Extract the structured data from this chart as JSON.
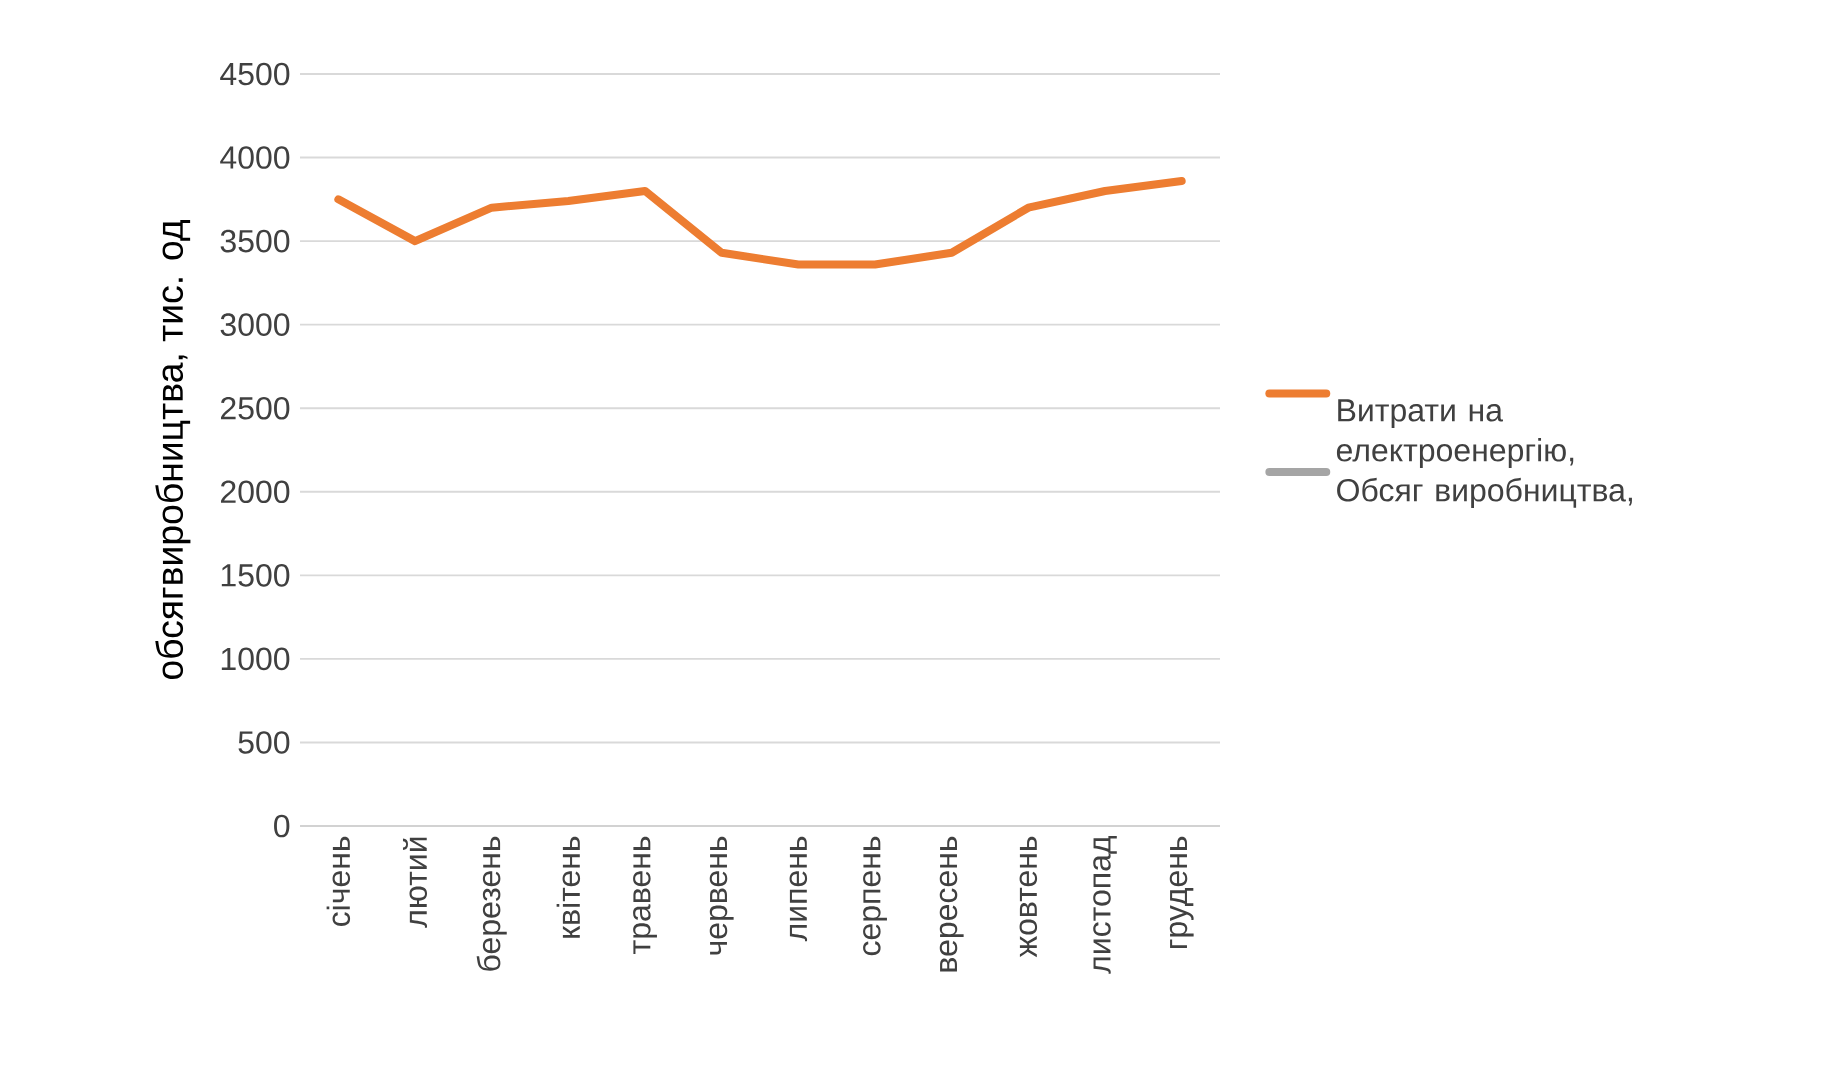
{
  "chart_data": {
    "type": "line",
    "ylabel": "обсягвиробництва, тис. од",
    "categories": [
      "січень",
      "лютий",
      "березень",
      "квітень",
      "травень",
      "червень",
      "липень",
      "серпень",
      "вересень",
      "жовтень",
      "листопад",
      "грудень"
    ],
    "series": [
      {
        "name": "Витрати на електроенергію,",
        "color": "#ed7d31",
        "values": [
          3750,
          3500,
          3700,
          3740,
          3800,
          3430,
          3360,
          3360,
          3430,
          3700,
          3800,
          3860
        ]
      },
      {
        "name": "Обсяг виробництва,",
        "color": "#a5a5a5",
        "values": [
          null,
          null,
          null,
          null,
          null,
          null,
          null,
          null,
          null,
          null,
          null,
          null
        ]
      }
    ],
    "ylim": [
      0,
      4500
    ],
    "yticks": [
      0,
      500,
      1000,
      1500,
      2000,
      2500,
      3000,
      3500,
      4000,
      4500
    ],
    "grid": "y",
    "legend": "right",
    "marker": "none",
    "line_style": "solid"
  }
}
